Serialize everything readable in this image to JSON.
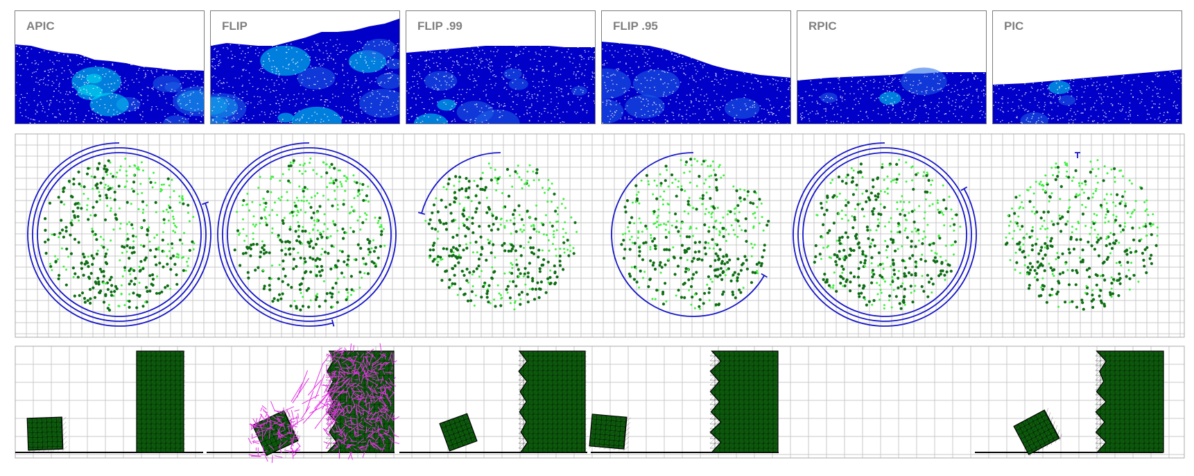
{
  "panels": [
    {
      "label": "APIC"
    },
    {
      "label": "FLIP"
    },
    {
      "label": "FLIP .99"
    },
    {
      "label": "FLIP .95"
    },
    {
      "label": "RPIC"
    },
    {
      "label": "PIC"
    }
  ],
  "colors": {
    "fluid_deep": "#0000c8",
    "fluid_mid": "#1e64e6",
    "fluid_bright": "#00e6f0",
    "particle_dark": "#0e6e14",
    "particle_light": "#3cf03c",
    "rotation_arc": "#1414c8",
    "grid_line": "#c8c8c8",
    "block_fill": "#0d5c0d",
    "velocity_vector": "#e632e6",
    "ground": "#000000"
  },
  "icons": {
    "rotation_marker": "arc-with-end-tick"
  }
}
